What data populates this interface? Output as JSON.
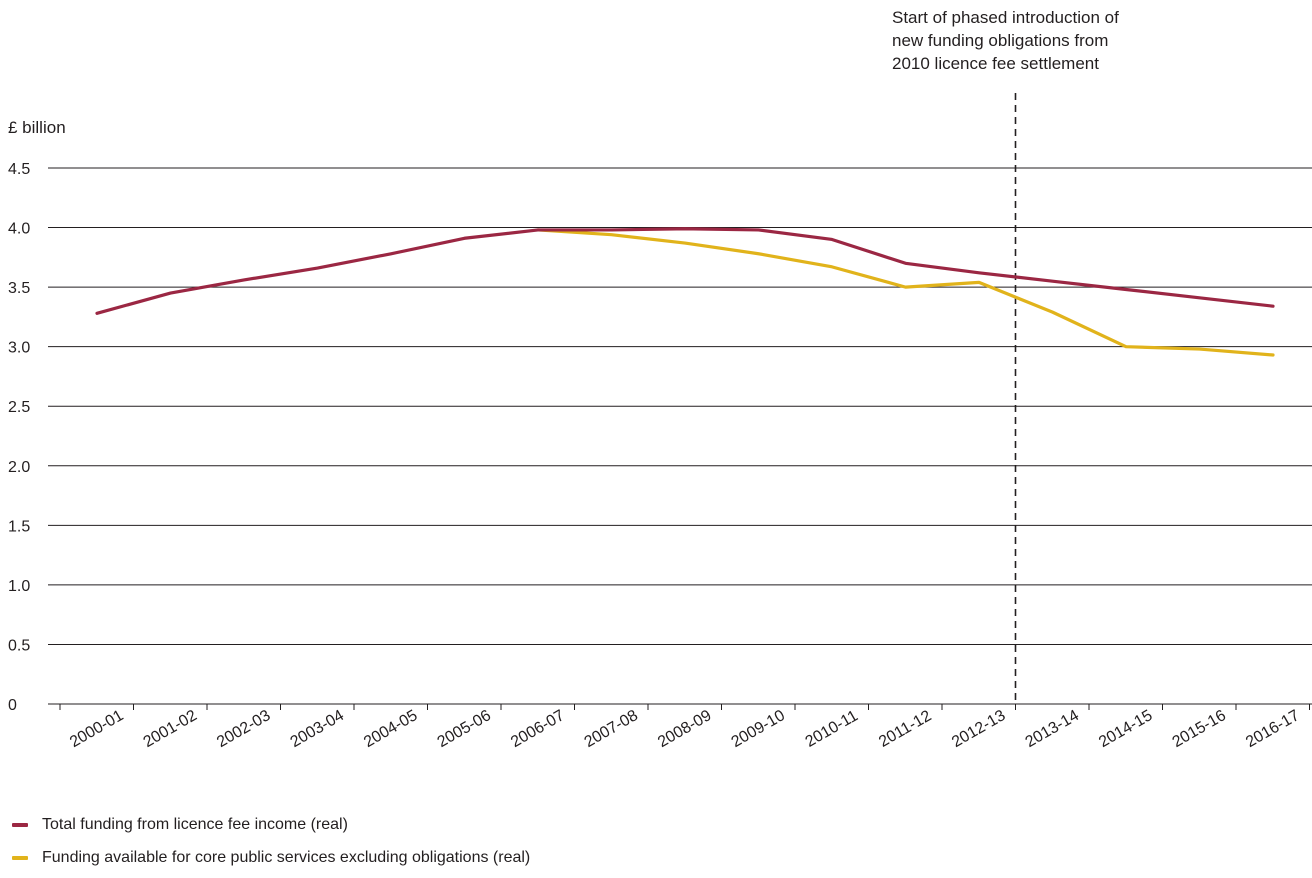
{
  "chart_data": {
    "type": "line",
    "ylabel": "£ billion",
    "ylim": [
      0,
      4.5
    ],
    "yticks": [
      "0",
      "0.5",
      "1.0",
      "1.5",
      "2.0",
      "2.5",
      "3.0",
      "3.5",
      "4.0",
      "4.5"
    ],
    "categories": [
      "2000-01",
      "2001-02",
      "2002-03",
      "2003-04",
      "2004-05",
      "2005-06",
      "2006-07",
      "2007-08",
      "2008-09",
      "2009-10",
      "2010-11",
      "2011-12",
      "2012-13",
      "2013-14",
      "2014-15",
      "2015-16",
      "2016-17"
    ],
    "series": [
      {
        "name": "Total funding from licence fee income (real)",
        "color": "#9b2743",
        "values": [
          3.28,
          3.45,
          3.56,
          3.66,
          3.78,
          3.91,
          3.98,
          3.98,
          3.99,
          3.98,
          3.9,
          3.7,
          3.62,
          3.55,
          3.48,
          3.41,
          3.34
        ]
      },
      {
        "name": "Funding available for core public services excluding obligations (real)",
        "color": "#e1b31b",
        "start_index": 6,
        "values": [
          null,
          null,
          null,
          null,
          null,
          null,
          3.98,
          3.94,
          3.87,
          3.78,
          3.67,
          3.5,
          3.54,
          3.29,
          3.0,
          2.98,
          2.93
        ]
      }
    ],
    "annotation": {
      "lines": [
        "Start of phased introduction of",
        "new funding obligations from",
        "2010 licence fee settlement"
      ],
      "at_boundary": "2012-13 / 2013-14"
    },
    "grid": true,
    "legend": "bottom-left"
  }
}
